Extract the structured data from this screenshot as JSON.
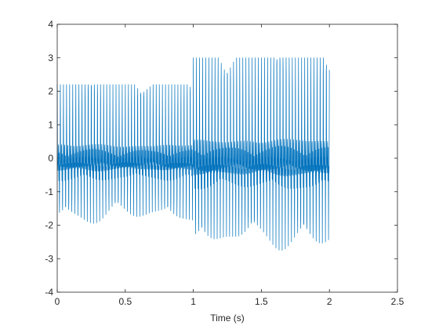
{
  "chart_data": {
    "type": "line",
    "title": "",
    "xlabel": "Time (s)",
    "ylabel": "",
    "xlim": [
      0,
      2.5
    ],
    "ylim": [
      -4,
      4
    ],
    "xticks": [
      0,
      0.5,
      1,
      1.5,
      2,
      2.5
    ],
    "yticks": [
      -4,
      -3,
      -2,
      -1,
      0,
      1,
      2,
      3,
      4
    ],
    "xtick_labels": [
      "0",
      "0.5",
      "1",
      "1.5",
      "2",
      "2.5"
    ],
    "ytick_labels": [
      "-4",
      "-3",
      "-2",
      "-1",
      "0",
      "1",
      "2",
      "3",
      "4"
    ],
    "grid": false,
    "legend": "none",
    "series": [
      {
        "color": "#0072BD",
        "segments": [
          {
            "x_range": [
              0,
              1.0
            ],
            "y_range": [
              -2.1,
              2.2
            ],
            "approx_frequency_hz": 44
          },
          {
            "x_range": [
              1.0,
              2.0
            ],
            "y_range": [
              -2.95,
              3.0
            ],
            "approx_frequency_hz": 44
          }
        ]
      }
    ]
  }
}
